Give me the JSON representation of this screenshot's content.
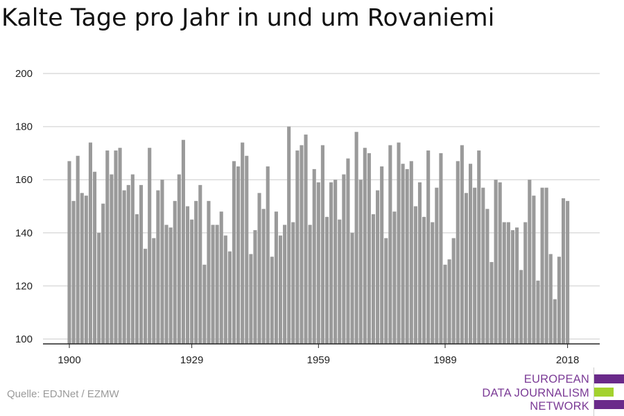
{
  "title": "Kalte Tage pro Jahr in und um Rovaniemi",
  "source": "Quelle: EDJNet / EZMW",
  "logo": {
    "line1": "EUROPEAN",
    "line2": "DATA JOURNALISM",
    "line3": "NETWORK",
    "text_color": "#7b3b96",
    "bar_purple": "#6a2a8a",
    "bar_green": "#a3d22e"
  },
  "colors": {
    "bar": "#9a9a9a",
    "grid": "#dcdcdc",
    "axis": "#222222"
  },
  "chart_data": {
    "type": "bar",
    "title": "Kalte Tage pro Jahr in und um Rovaniemi",
    "xlabel": "",
    "ylabel": "",
    "ylim": [
      100,
      200
    ],
    "yticks": [
      100,
      120,
      140,
      160,
      180,
      200
    ],
    "xticks": [
      1900,
      1929,
      1959,
      1989,
      2018
    ],
    "grid": true,
    "x_start": 1900,
    "values": [
      167,
      152,
      169,
      155,
      154,
      174,
      163,
      140,
      151,
      171,
      162,
      171,
      172,
      156,
      158,
      162,
      147,
      158,
      134,
      172,
      138,
      156,
      160,
      143,
      142,
      152,
      162,
      175,
      150,
      145,
      152,
      158,
      128,
      152,
      143,
      143,
      148,
      139,
      133,
      167,
      165,
      174,
      169,
      132,
      141,
      155,
      149,
      165,
      131,
      148,
      139,
      143,
      180,
      144,
      171,
      173,
      177,
      143,
      164,
      159,
      173,
      146,
      159,
      160,
      145,
      162,
      168,
      140,
      178,
      160,
      172,
      170,
      147,
      156,
      165,
      138,
      173,
      148,
      174,
      166,
      164,
      167,
      150,
      159,
      146,
      171,
      144,
      157,
      170,
      128,
      130,
      138,
      167,
      173,
      155,
      166,
      157,
      171,
      157,
      149,
      129,
      160,
      159,
      144,
      144,
      141,
      142,
      126,
      144,
      160,
      154,
      122,
      157,
      157,
      132,
      115,
      131,
      153,
      152
    ]
  }
}
